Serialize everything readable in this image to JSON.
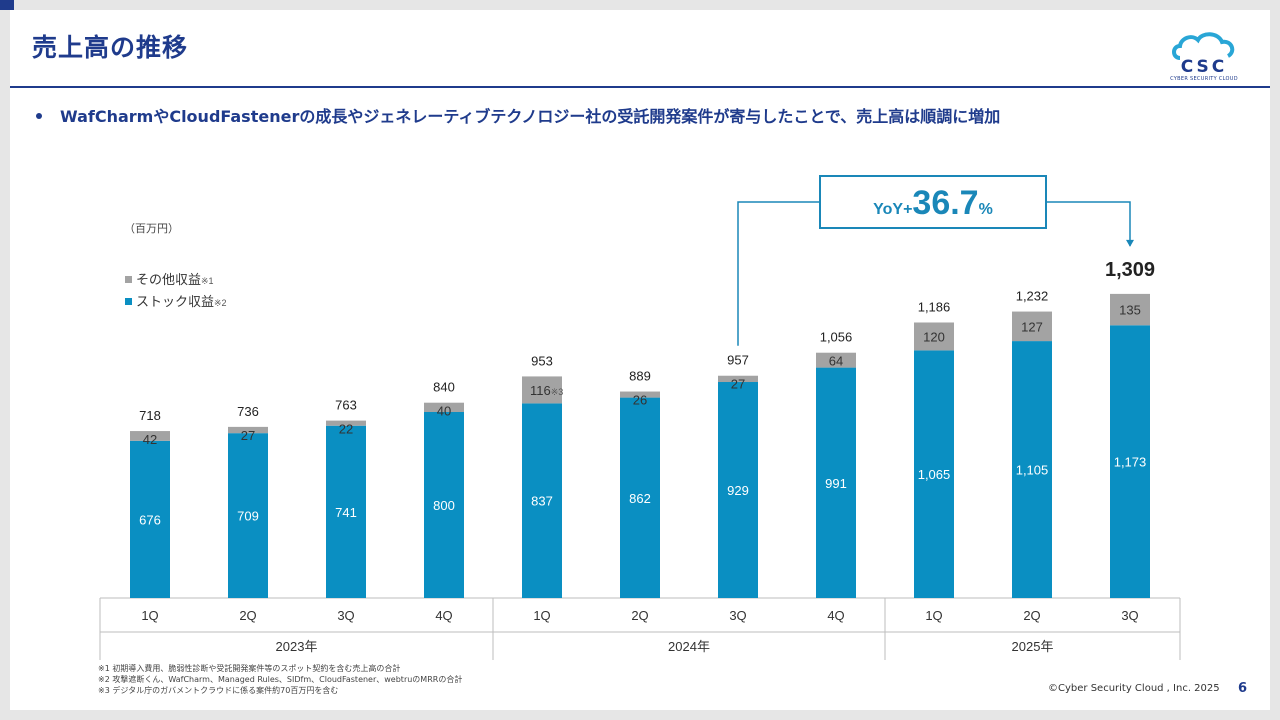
{
  "header": {
    "title": "売上高の推移",
    "logo_text": "CYBER SECURITY CLOUD"
  },
  "bullet": "WafCharmやCloudFastenerの成長やジェネレーティブテクノロジー社の受託開発案件が寄与したことで、売上高は順調に増加",
  "footnotes": [
    "※1 初期導入費用、脆弱性診断や受託開発案件等のスポット契約を含む売上高の合計",
    "※2 攻撃遮断くん、WafCharm、Managed Rules、SIDfm、CloudFastener、webtruのMRRの合計",
    "※3 デジタル庁のガバメントクラウドに係る案件約70百万円を含む"
  ],
  "copyright": "©Cyber Security Cloud , Inc. 2025",
  "page_number": "6",
  "colors": {
    "stock": "#0a8fc2",
    "other": "#a3a3a3",
    "navy": "#1f3b8c",
    "callout": "#1a87b8"
  },
  "chart_data": {
    "type": "bar",
    "stacked": true,
    "unit_label": "（百万円）",
    "categories": [
      "1Q",
      "2Q",
      "3Q",
      "4Q",
      "1Q",
      "2Q",
      "3Q",
      "4Q",
      "1Q",
      "2Q",
      "3Q"
    ],
    "year_groups": [
      {
        "label": "2023年",
        "count": 4
      },
      {
        "label": "2024年",
        "count": 4
      },
      {
        "label": "2025年",
        "count": 3
      }
    ],
    "series": [
      {
        "name": "ストック収益",
        "note": "※2",
        "values": [
          676,
          709,
          741,
          800,
          837,
          862,
          929,
          991,
          1065,
          1105,
          1173
        ]
      },
      {
        "name": "その他収益",
        "note": "※1",
        "values": [
          42,
          27,
          22,
          40,
          116,
          26,
          27,
          64,
          120,
          127,
          135
        ]
      }
    ],
    "stock_labels": [
      "676",
      "709",
      "741",
      "800",
      "837",
      "862",
      "929",
      "991",
      "1,065",
      "1,105",
      "1,173"
    ],
    "other_labels": [
      "42",
      "27",
      "22",
      "40",
      "116",
      "26",
      "27",
      "64",
      "120",
      "127",
      "135"
    ],
    "other_label_notes": [
      "",
      "",
      "",
      "",
      "※3",
      "",
      "",
      "",
      "",
      "",
      ""
    ],
    "totals": [
      "718",
      "736",
      "763",
      "840",
      "953",
      "889",
      "957",
      "1,056",
      "1,186",
      "1,232",
      "1,309"
    ],
    "highlight_total_index": 10,
    "legend_position": "top-left",
    "ylim": [
      0,
      1309
    ],
    "callout": {
      "prefix": "YoY+",
      "value": "36.7",
      "suffix": "%",
      "from_index": 6,
      "to_index": 10
    }
  }
}
